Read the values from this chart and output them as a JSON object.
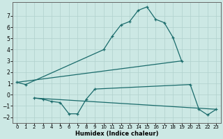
{
  "xlabel": "Humidex (Indice chaleur)",
  "background_color": "#cce8e4",
  "grid_color": "#b0d0cc",
  "line_color": "#1a6b6b",
  "xlim": [
    -0.5,
    23.5
  ],
  "ylim": [
    -2.5,
    8.2
  ],
  "xticks": [
    0,
    1,
    2,
    3,
    4,
    5,
    6,
    7,
    8,
    9,
    10,
    11,
    12,
    13,
    14,
    15,
    16,
    17,
    18,
    19,
    20,
    21,
    22,
    23
  ],
  "yticks": [
    -2,
    -1,
    0,
    1,
    2,
    3,
    4,
    5,
    6,
    7
  ],
  "line1_x": [
    0,
    1,
    10,
    11,
    12,
    13,
    14,
    15,
    16,
    17,
    18,
    19
  ],
  "line1_y": [
    1.1,
    0.9,
    4.0,
    5.2,
    6.2,
    6.5,
    7.5,
    7.8,
    6.7,
    6.4,
    5.1,
    3.0
  ],
  "line2_x": [
    2,
    3,
    4,
    5,
    6,
    7,
    8,
    9,
    20,
    21,
    22,
    23
  ],
  "line2_y": [
    -0.3,
    -0.4,
    -0.6,
    -0.7,
    -1.7,
    -1.7,
    -0.4,
    0.5,
    0.9,
    -1.3,
    -1.8,
    -1.3
  ],
  "line3_x": [
    0,
    19
  ],
  "line3_y": [
    1.1,
    3.0
  ],
  "line4_x": [
    2,
    23
  ],
  "line4_y": [
    -0.3,
    -1.3
  ],
  "xlabel_fontsize": 6.0,
  "tick_fontsize_x": 5.0,
  "tick_fontsize_y": 5.5
}
